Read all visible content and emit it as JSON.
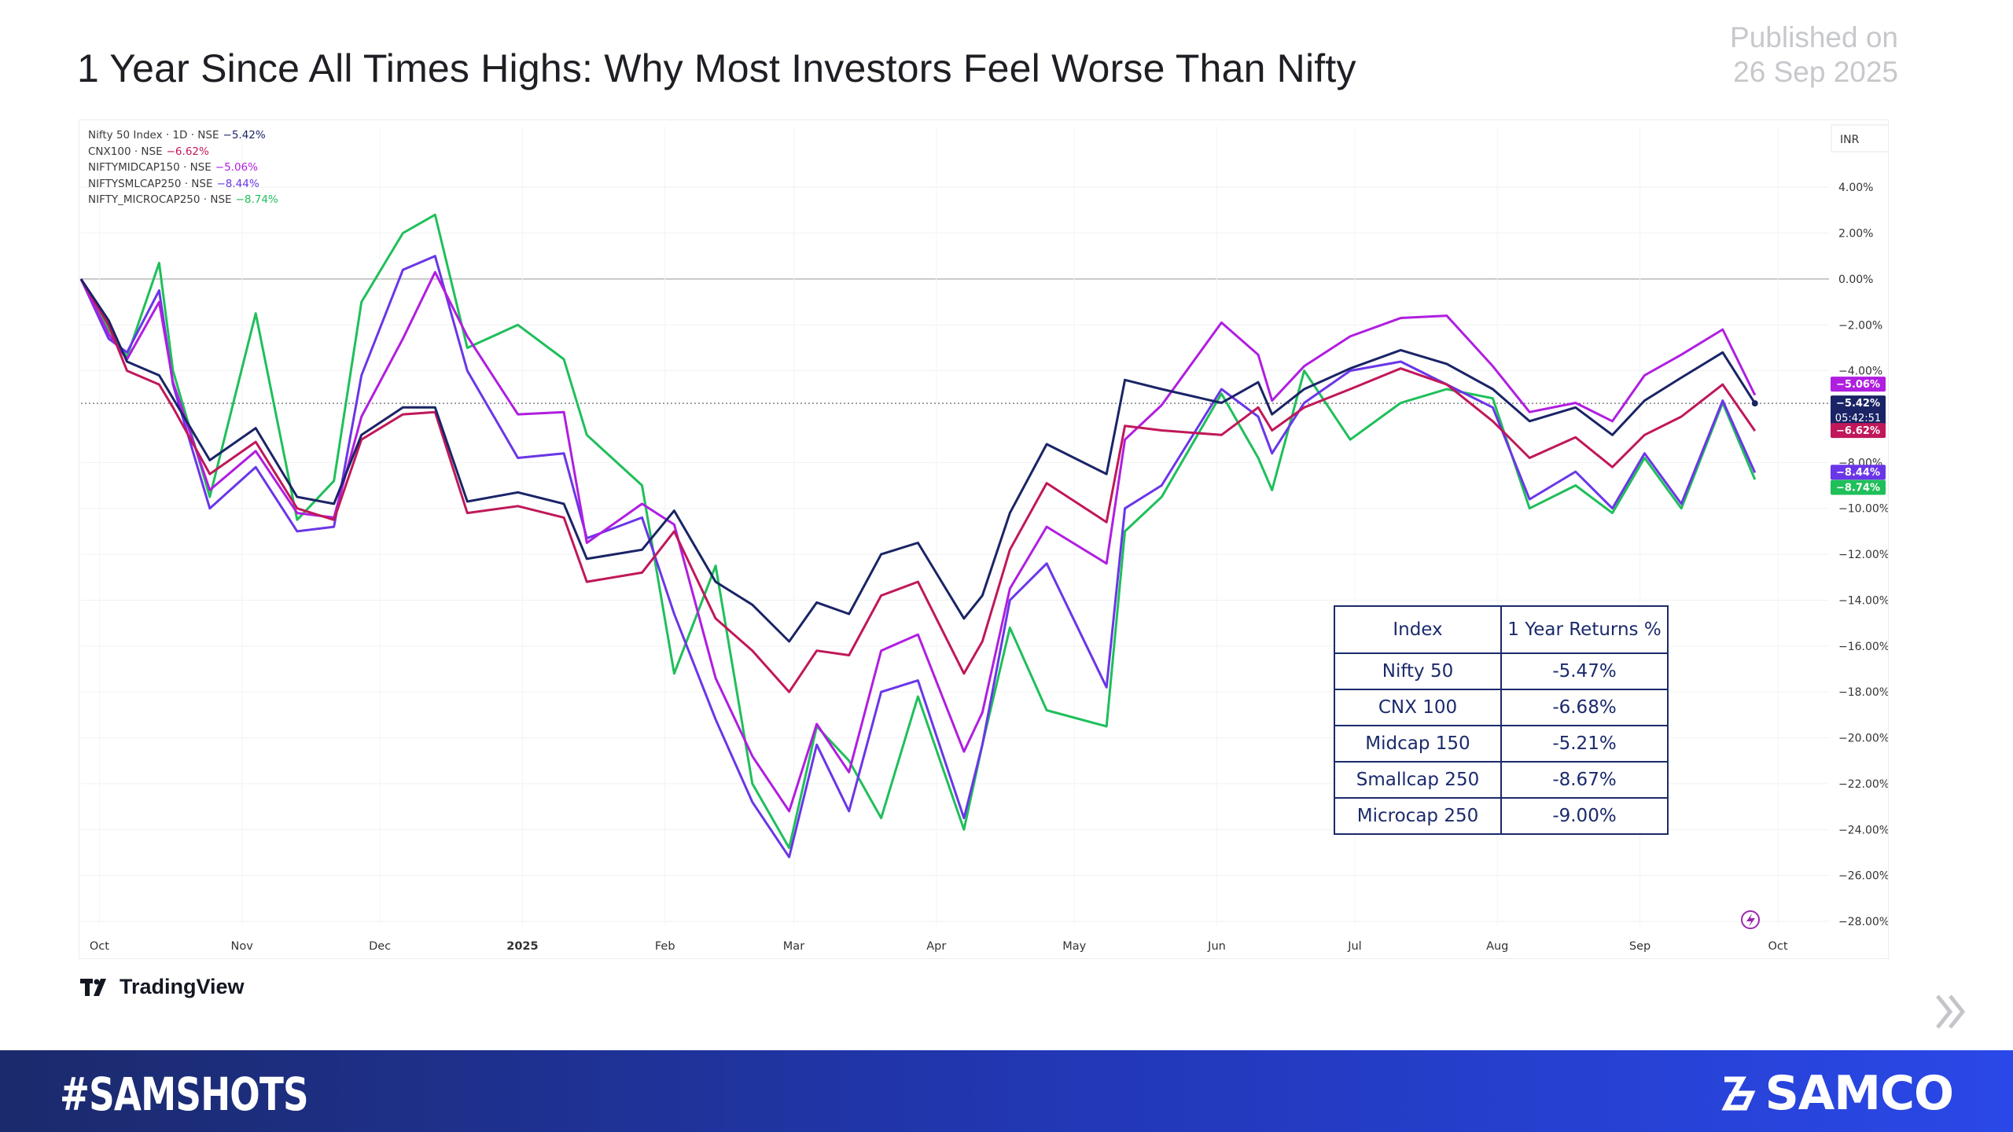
{
  "header": {
    "title": "1 Year Since All Times Highs: Why Most Investors Feel Worse Than Nifty",
    "published_label": "Published on",
    "published_date": "26 Sep 2025"
  },
  "legend": [
    {
      "label": "Nifty 50 Index · 1D · NSE",
      "value": "−5.42%",
      "color": "#1a2466"
    },
    {
      "label": "CNX100 · NSE",
      "value": "−6.62%",
      "color": "#c0185a"
    },
    {
      "label": "NIFTYMIDCAP150 · NSE",
      "value": "−5.06%",
      "color": "#b01ee0"
    },
    {
      "label": "NIFTYSMLCAP250 · NSE",
      "value": "−8.44%",
      "color": "#6a36e8"
    },
    {
      "label": "NIFTY_MICROCAP250 · NSE",
      "value": "−8.74%",
      "color": "#1fbf5a"
    }
  ],
  "chart_data": {
    "type": "line",
    "currency_label": "INR",
    "y_unit": "%",
    "ylim": [
      -28,
      5
    ],
    "y_ticks": [
      "4.00%",
      "2.00%",
      "0.00%",
      "−2.00%",
      "−4.00%",
      "−8.00%",
      "−10.00%",
      "−12.00%",
      "−14.00%",
      "−16.00%",
      "−18.00%",
      "−20.00%",
      "−22.00%",
      "−24.00%",
      "−26.00%",
      "−28.00%"
    ],
    "y_tick_values": [
      4,
      2,
      0,
      -2,
      -4,
      -8,
      -10,
      -12,
      -14,
      -16,
      -18,
      -20,
      -22,
      -24,
      -26,
      -28
    ],
    "x_ticks": [
      "Oct",
      "Nov",
      "Dec",
      "2025",
      "Feb",
      "Mar",
      "Apr",
      "May",
      "Jun",
      "Jul",
      "Aug",
      "Sep",
      "Oct"
    ],
    "x_tick_dates": [
      "2024-10-01",
      "2024-11-01",
      "2024-12-01",
      "2025-01-01",
      "2025-02-01",
      "2025-03-01",
      "2025-04-01",
      "2025-05-01",
      "2025-06-01",
      "2025-07-01",
      "2025-08-01",
      "2025-09-01",
      "2025-10-01"
    ],
    "time_label": "05:42:51",
    "series": [
      {
        "name": "Nifty 50 Index · 1D · NSE",
        "color": "#1a2466",
        "last_label": "−5.42%",
        "x": [
          "2024-09-27",
          "2024-10-03",
          "2024-10-07",
          "2024-10-14",
          "2024-10-17",
          "2024-10-25",
          "2024-11-04",
          "2024-11-13",
          "2024-11-21",
          "2024-11-27",
          "2024-12-06",
          "2024-12-13",
          "2024-12-20",
          "2024-12-31",
          "2025-01-10",
          "2025-01-15",
          "2025-01-27",
          "2025-02-03",
          "2025-02-12",
          "2025-02-20",
          "2025-02-28",
          "2025-03-06",
          "2025-03-13",
          "2025-03-20",
          "2025-03-28",
          "2025-04-07",
          "2025-04-11",
          "2025-04-17",
          "2025-04-25",
          "2025-05-08",
          "2025-05-12",
          "2025-05-20",
          "2025-06-02",
          "2025-06-10",
          "2025-06-13",
          "2025-06-20",
          "2025-06-30",
          "2025-07-11",
          "2025-07-21",
          "2025-07-31",
          "2025-08-08",
          "2025-08-18",
          "2025-08-26",
          "2025-09-02",
          "2025-09-10",
          "2025-09-19",
          "2025-09-26"
        ],
        "y": [
          0.0,
          -1.8,
          -3.6,
          -4.2,
          -5.2,
          -7.9,
          -6.5,
          -9.5,
          -9.8,
          -6.8,
          -5.6,
          -5.6,
          -9.7,
          -9.3,
          -9.8,
          -12.2,
          -11.8,
          -10.1,
          -13.2,
          -14.2,
          -15.8,
          -14.1,
          -14.6,
          -12.0,
          -11.5,
          -14.8,
          -13.8,
          -10.2,
          -7.2,
          -8.5,
          -4.4,
          -4.8,
          -5.4,
          -4.5,
          -5.9,
          -4.8,
          -3.9,
          -3.1,
          -3.7,
          -4.8,
          -6.2,
          -5.6,
          -6.8,
          -5.3,
          -4.3,
          -3.2,
          -5.42
        ]
      },
      {
        "name": "CNX100 · NSE",
        "color": "#c0185a",
        "last_label": "−6.62%",
        "x": [
          "2024-09-27",
          "2024-10-03",
          "2024-10-07",
          "2024-10-14",
          "2024-10-17",
          "2024-10-25",
          "2024-11-04",
          "2024-11-13",
          "2024-11-21",
          "2024-11-27",
          "2024-12-06",
          "2024-12-13",
          "2024-12-20",
          "2024-12-31",
          "2025-01-10",
          "2025-01-15",
          "2025-01-27",
          "2025-02-03",
          "2025-02-12",
          "2025-02-20",
          "2025-02-28",
          "2025-03-06",
          "2025-03-13",
          "2025-03-20",
          "2025-03-28",
          "2025-04-07",
          "2025-04-11",
          "2025-04-17",
          "2025-04-25",
          "2025-05-08",
          "2025-05-12",
          "2025-05-20",
          "2025-06-02",
          "2025-06-10",
          "2025-06-13",
          "2025-06-20",
          "2025-06-30",
          "2025-07-11",
          "2025-07-21",
          "2025-07-31",
          "2025-08-08",
          "2025-08-18",
          "2025-08-26",
          "2025-09-02",
          "2025-09-10",
          "2025-09-19",
          "2025-09-26"
        ],
        "y": [
          0.0,
          -2.0,
          -4.0,
          -4.6,
          -5.6,
          -8.5,
          -7.1,
          -10.0,
          -10.5,
          -7.0,
          -5.9,
          -5.8,
          -10.2,
          -9.9,
          -10.4,
          -13.2,
          -12.8,
          -11.0,
          -14.8,
          -16.2,
          -18.0,
          -16.2,
          -16.4,
          -13.8,
          -13.2,
          -17.2,
          -15.8,
          -11.8,
          -8.9,
          -10.6,
          -6.4,
          -6.6,
          -6.8,
          -5.6,
          -6.6,
          -5.6,
          -4.8,
          -3.9,
          -4.6,
          -6.2,
          -7.8,
          -6.9,
          -8.2,
          -6.8,
          -6.0,
          -4.6,
          -6.62
        ]
      },
      {
        "name": "NIFTYMIDCAP150 · NSE",
        "color": "#b01ee0",
        "last_label": "−5.06%",
        "x": [
          "2024-09-27",
          "2024-10-03",
          "2024-10-07",
          "2024-10-14",
          "2024-10-17",
          "2024-10-25",
          "2024-11-04",
          "2024-11-13",
          "2024-11-21",
          "2024-11-27",
          "2024-12-06",
          "2024-12-13",
          "2024-12-20",
          "2024-12-31",
          "2025-01-10",
          "2025-01-15",
          "2025-01-27",
          "2025-02-03",
          "2025-02-12",
          "2025-02-20",
          "2025-02-28",
          "2025-03-06",
          "2025-03-13",
          "2025-03-20",
          "2025-03-28",
          "2025-04-07",
          "2025-04-11",
          "2025-04-17",
          "2025-04-25",
          "2025-05-08",
          "2025-05-12",
          "2025-05-20",
          "2025-06-02",
          "2025-06-10",
          "2025-06-13",
          "2025-06-20",
          "2025-06-30",
          "2025-07-11",
          "2025-07-21",
          "2025-07-31",
          "2025-08-08",
          "2025-08-18",
          "2025-08-26",
          "2025-09-02",
          "2025-09-10",
          "2025-09-19",
          "2025-09-26"
        ],
        "y": [
          0.0,
          -2.4,
          -3.5,
          -1.0,
          -4.5,
          -9.2,
          -7.5,
          -10.2,
          -10.4,
          -6.0,
          -2.6,
          0.3,
          -2.5,
          -5.9,
          -5.8,
          -11.5,
          -9.8,
          -10.7,
          -17.4,
          -20.8,
          -23.2,
          -19.4,
          -21.5,
          -16.2,
          -15.5,
          -20.6,
          -18.9,
          -13.5,
          -10.8,
          -12.4,
          -7.0,
          -5.5,
          -1.9,
          -3.3,
          -5.3,
          -3.8,
          -2.5,
          -1.7,
          -1.6,
          -3.8,
          -5.8,
          -5.4,
          -6.2,
          -4.2,
          -3.3,
          -2.2,
          -5.06
        ]
      },
      {
        "name": "NIFTYSMLCAP250 · NSE",
        "color": "#6a36e8",
        "last_label": "−8.44%",
        "x": [
          "2024-09-27",
          "2024-10-03",
          "2024-10-07",
          "2024-10-14",
          "2024-10-17",
          "2024-10-25",
          "2024-11-04",
          "2024-11-13",
          "2024-11-21",
          "2024-11-27",
          "2024-12-06",
          "2024-12-13",
          "2024-12-20",
          "2024-12-31",
          "2025-01-10",
          "2025-01-15",
          "2025-01-27",
          "2025-02-03",
          "2025-02-12",
          "2025-02-20",
          "2025-02-28",
          "2025-03-06",
          "2025-03-13",
          "2025-03-20",
          "2025-03-28",
          "2025-04-07",
          "2025-04-11",
          "2025-04-17",
          "2025-04-25",
          "2025-05-08",
          "2025-05-12",
          "2025-05-20",
          "2025-06-02",
          "2025-06-10",
          "2025-06-13",
          "2025-06-20",
          "2025-06-30",
          "2025-07-11",
          "2025-07-21",
          "2025-07-31",
          "2025-08-08",
          "2025-08-18",
          "2025-08-26",
          "2025-09-02",
          "2025-09-10",
          "2025-09-19",
          "2025-09-26"
        ],
        "y": [
          0.0,
          -2.6,
          -3.2,
          -0.5,
          -4.6,
          -10.0,
          -8.2,
          -11.0,
          -10.8,
          -4.2,
          0.4,
          1.0,
          -4.0,
          -7.8,
          -7.6,
          -11.3,
          -10.4,
          -14.6,
          -19.2,
          -22.8,
          -25.2,
          -20.3,
          -23.2,
          -18.0,
          -17.5,
          -23.5,
          -20.3,
          -14.0,
          -12.4,
          -17.8,
          -10.0,
          -9.0,
          -4.8,
          -6.0,
          -7.6,
          -5.4,
          -4.0,
          -3.6,
          -4.6,
          -5.6,
          -9.6,
          -8.4,
          -10.0,
          -7.6,
          -9.8,
          -5.3,
          -8.44
        ]
      },
      {
        "name": "NIFTY_MICROCAP250 · NSE",
        "color": "#1fbf5a",
        "last_label": "−8.74%",
        "x": [
          "2024-09-27",
          "2024-10-03",
          "2024-10-07",
          "2024-10-14",
          "2024-10-17",
          "2024-10-25",
          "2024-11-04",
          "2024-11-13",
          "2024-11-21",
          "2024-11-27",
          "2024-12-06",
          "2024-12-13",
          "2024-12-20",
          "2024-12-31",
          "2025-01-10",
          "2025-01-15",
          "2025-01-27",
          "2025-02-03",
          "2025-02-12",
          "2025-02-20",
          "2025-02-28",
          "2025-03-06",
          "2025-03-13",
          "2025-03-20",
          "2025-03-28",
          "2025-04-07",
          "2025-04-11",
          "2025-04-17",
          "2025-04-25",
          "2025-05-08",
          "2025-05-12",
          "2025-05-20",
          "2025-06-02",
          "2025-06-10",
          "2025-06-13",
          "2025-06-20",
          "2025-06-30",
          "2025-07-11",
          "2025-07-21",
          "2025-07-31",
          "2025-08-08",
          "2025-08-18",
          "2025-08-26",
          "2025-09-02",
          "2025-09-10",
          "2025-09-19",
          "2025-09-26"
        ],
        "y": [
          0.0,
          -2.2,
          -3.4,
          0.7,
          -4.0,
          -9.5,
          -1.5,
          -10.5,
          -8.8,
          -1.0,
          2.0,
          2.8,
          -3.0,
          -2.0,
          -3.5,
          -6.8,
          -9.0,
          -17.2,
          -12.5,
          -22.0,
          -24.8,
          -19.5,
          -21.0,
          -23.5,
          -18.2,
          -24.0,
          -20.3,
          -15.2,
          -18.8,
          -19.5,
          -11.0,
          -9.5,
          -5.0,
          -7.8,
          -9.2,
          -4.0,
          -7.0,
          -5.4,
          -4.8,
          -5.2,
          -10.0,
          -9.0,
          -10.2,
          -7.8,
          -10.0,
          -5.4,
          -8.74
        ]
      }
    ]
  },
  "returns_table": {
    "headers": [
      "Index",
      "1 Year Returns %"
    ],
    "rows": [
      {
        "index": "Nifty 50",
        "ret": "-5.47%"
      },
      {
        "index": "CNX 100",
        "ret": "-6.68%"
      },
      {
        "index": "Midcap 150",
        "ret": "-5.21%"
      },
      {
        "index": "Smallcap 250",
        "ret": "-8.67%"
      },
      {
        "index": "Microcap 250",
        "ret": "-9.00%"
      }
    ]
  },
  "tradingview_label": "TradingView",
  "footer": {
    "hashtag": "#SAMSHOTS",
    "brand": "SAMCO"
  },
  "colors": {
    "footer_start": "#1b2a6b",
    "footer_end": "#2a48e8",
    "table_border": "#1b2a6b"
  }
}
